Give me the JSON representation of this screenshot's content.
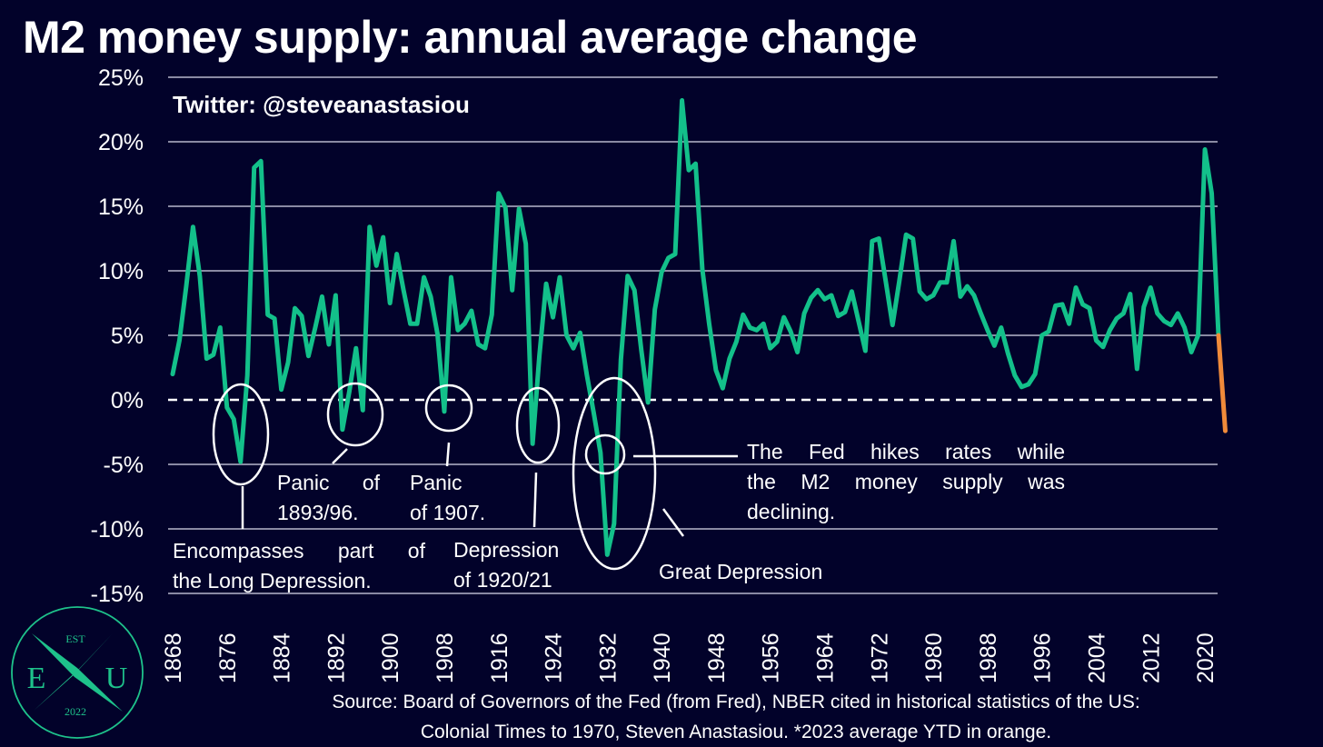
{
  "title": "M2 money supply: annual average change",
  "handle": "Twitter: @steveanastasiou",
  "source": [
    "Source: Board of Governors of the Fed (from Fred), NBER cited in historical statistics of the US:",
    "Colonial Times to 1970, Steven Anastasiou. *2023 average YTD in orange."
  ],
  "annotations": {
    "long_depression": [
      "Encompasses part of",
      "the Long Depression."
    ],
    "panic_1893": [
      "Panic of",
      "1893/96."
    ],
    "panic_1907": [
      "Panic",
      "of 1907."
    ],
    "depression_1920": [
      "Depression",
      "of 1920/21"
    ],
    "great_depression": [
      "Great Depression"
    ],
    "fed_hikes": [
      "The Fed hikes rates while",
      "the M2 money supply was",
      "declining."
    ]
  },
  "logo": {
    "top": "EST",
    "left": "E",
    "right": "U",
    "bottom": "2022"
  },
  "colors": {
    "background": "#02022a",
    "series": "#13c08a",
    "ytd": "#f08a3a",
    "grid": "#8a8aa3",
    "logo": "#1ec28b"
  },
  "chart_data": {
    "type": "line",
    "title": "M2 money supply: annual average change",
    "xlabel": "",
    "ylabel": "",
    "xlim": [
      1868,
      2023
    ],
    "ylim": [
      -15,
      25
    ],
    "y_ticks": [
      25,
      20,
      15,
      10,
      5,
      0,
      -5,
      -10,
      -15
    ],
    "y_tick_labels": [
      "25%",
      "20%",
      "15%",
      "10%",
      "5%",
      "0%",
      "-5%",
      "-10%",
      "-15%"
    ],
    "x_ticks": [
      1868,
      1876,
      1884,
      1892,
      1900,
      1908,
      1916,
      1924,
      1932,
      1940,
      1948,
      1956,
      1964,
      1972,
      1980,
      1988,
      1996,
      2004,
      2012,
      2020
    ],
    "grid": "horizontal",
    "reference_line": {
      "y": 0,
      "style": "dashed"
    },
    "start_year": 1868,
    "values": [
      2.0,
      4.6,
      8.8,
      13.4,
      9.6,
      3.2,
      3.5,
      5.6,
      -0.6,
      -1.5,
      -4.8,
      1.9,
      18.0,
      18.5,
      6.6,
      6.3,
      0.8,
      2.9,
      7.1,
      6.5,
      3.4,
      5.6,
      8.0,
      4.3,
      8.1,
      -2.3,
      0.6,
      4.0,
      -0.8,
      13.4,
      10.4,
      12.6,
      7.5,
      11.3,
      8.5,
      5.9,
      5.9,
      9.5,
      8.0,
      5.1,
      -0.9,
      9.5,
      5.4,
      5.9,
      6.9,
      4.3,
      4.0,
      6.6,
      16.0,
      14.9,
      8.5,
      14.8,
      12.1,
      -3.4,
      3.4,
      9.0,
      6.4,
      9.5,
      5.0,
      4.0,
      5.2,
      1.9,
      -1.0,
      -4.1,
      -12.0,
      -9.6,
      3.1,
      9.6,
      8.5,
      3.9,
      -0.2,
      7.0,
      9.9,
      11.0,
      11.3,
      23.2,
      17.8,
      18.3,
      10.1,
      5.9,
      2.3,
      0.9,
      3.2,
      4.5,
      6.6,
      5.6,
      5.4,
      5.9,
      4.0,
      4.5,
      6.4,
      5.3,
      3.7,
      6.7,
      7.9,
      8.5,
      7.8,
      8.1,
      6.5,
      6.8,
      8.4,
      6.1,
      3.8,
      12.3,
      12.5,
      9.2,
      5.8,
      9.2,
      12.8,
      12.5,
      8.4,
      7.8,
      8.1,
      9.1,
      9.1,
      12.3,
      8.0,
      8.8,
      8.1,
      6.7,
      5.4,
      4.2,
      5.6,
      3.6,
      1.9,
      1.0,
      1.2,
      2.0,
      5.0,
      5.3,
      7.3,
      7.4,
      5.9,
      8.7,
      7.4,
      7.1,
      4.6,
      4.1,
      5.4,
      6.3,
      6.7,
      8.2,
      2.4,
      7.2,
      8.7,
      6.7,
      6.1,
      5.8,
      6.7,
      5.6,
      3.7,
      5.0,
      19.4,
      16.0,
      5.0,
      -2.4
    ],
    "ytd_note": "2023 average YTD in orange",
    "ytd_year": 2023
  }
}
